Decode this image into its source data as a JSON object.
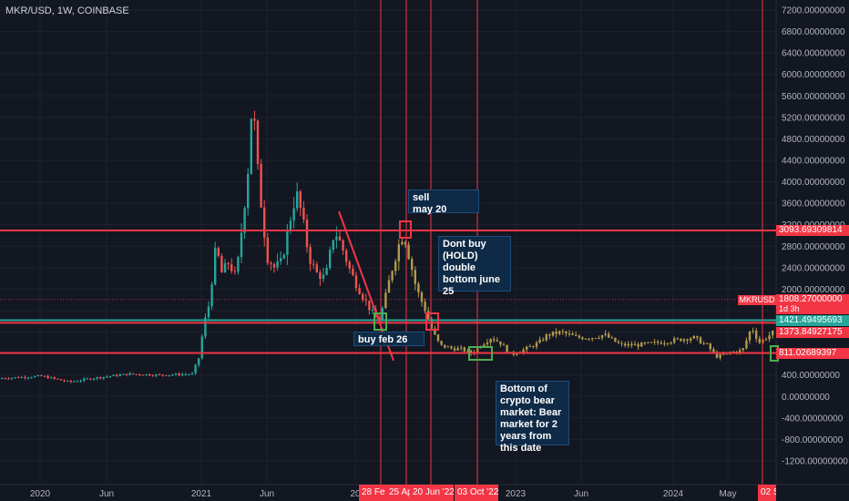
{
  "header": {
    "symbol": "MKR/USD, 1W, COINBASE"
  },
  "colors": {
    "background": "#131722",
    "up": "#26a69a",
    "down": "#ef5350",
    "hline_red": "#f23645",
    "hline_green": "#26a69a",
    "candle_yellow": "#b39a4a",
    "box_green": "#4caf50"
  },
  "chart_data": {
    "type": "candlestick",
    "y_axis": {
      "ylim": [
        -1200,
        7200
      ],
      "tick_labels": [
        "7200.00000000",
        "6800.00000000",
        "6400.00000000",
        "6000.00000000",
        "5600.00000000",
        "5200.00000000",
        "4800.00000000",
        "4400.00000000",
        "4000.00000000",
        "3600.00000000",
        "3200.00000000",
        "2800.00000000",
        "2400.00000000",
        "2000.00000000",
        "1600.00000000",
        "1200.00000000",
        "800.00000000",
        "400.00000000",
        "0.00000000",
        "-400.00000000",
        "-800.00000000",
        "-1200.00000000"
      ]
    },
    "x_axis": {
      "tick_labels": [
        "2020",
        "Jun",
        "2021",
        "Jun",
        "20",
        "2023",
        "Jun",
        "2024",
        "May"
      ]
    },
    "horizontal_lines": [
      {
        "value": 3093.69309814,
        "label": "3093.69309814",
        "color": "#f23645"
      },
      {
        "value": 1421.49495693,
        "label": "1421.49495693",
        "color": "#26a69a"
      },
      {
        "value": 1373.84927175,
        "label": "1373.84927175",
        "color": "#f23645"
      },
      {
        "value": 811.02689397,
        "label": "811.02689397",
        "color": "#f23645"
      }
    ],
    "last_price": {
      "symbol": "MKRUSD",
      "value": "1808.27000000",
      "countdown": "1d 3h"
    },
    "vertical_markers": [
      "28 Fe",
      "25 Ap",
      "20 Jun '22",
      "03 Oct '22",
      "02 S"
    ],
    "annotations": [
      {
        "text": "sell\nmay 20"
      },
      {
        "text": "Dont buy\n(HOLD)\ndouble\nbottom june\n25"
      },
      {
        "text": "buy feb 26"
      },
      {
        "text": "Bottom of\ncrypto bear\nmarket: Bear\nmarket for 2\nyears from\nthis date"
      }
    ]
  }
}
